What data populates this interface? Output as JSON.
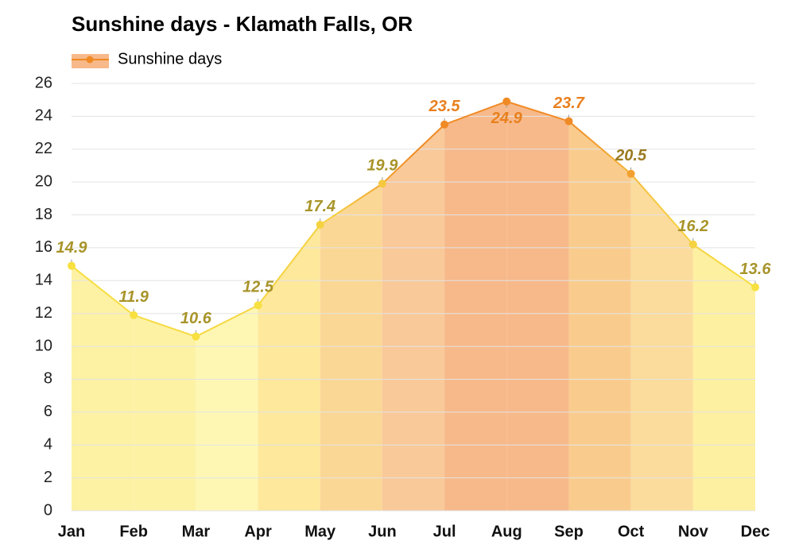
{
  "chart_data": {
    "type": "area",
    "title": "Sunshine days - Klamath Falls, OR",
    "categories": [
      "Jan",
      "Feb",
      "Mar",
      "Apr",
      "May",
      "Jun",
      "Jul",
      "Aug",
      "Sep",
      "Oct",
      "Nov",
      "Dec"
    ],
    "series": [
      {
        "name": "Sunshine days",
        "color": "#f08a24",
        "values": [
          14.9,
          11.9,
          10.6,
          12.5,
          17.4,
          19.9,
          23.5,
          24.9,
          23.7,
          20.5,
          16.2,
          13.6
        ],
        "point_colors": [
          "#f7e040",
          "#f7e040",
          "#f7e040",
          "#f7e040",
          "#f5d240",
          "#f5c840",
          "#f08a24",
          "#f08a24",
          "#f08a24",
          "#f2a030",
          "#f5d240",
          "#f7e040"
        ],
        "label_colors": [
          "#a8942a",
          "#a8942a",
          "#a8942a",
          "#a8942a",
          "#a8942a",
          "#a8942a",
          "#e8801e",
          "#e8801e",
          "#e8801e",
          "#9a7a20",
          "#a8942a",
          "#a8942a"
        ],
        "fill_colors": [
          "#fdf2a4",
          "#fdf2a4",
          "#fef7b4",
          "#fde89c",
          "#fbd796",
          "#f9c99a",
          "#f7b98a",
          "#f7b98a",
          "#f9cc8e",
          "#fbdc9c",
          "#fdf0a0"
        ]
      }
    ],
    "ylim": [
      0,
      26
    ],
    "yticks": [
      0,
      2,
      4,
      6,
      8,
      10,
      12,
      14,
      16,
      18,
      20,
      22,
      24,
      26
    ],
    "grid": true
  }
}
